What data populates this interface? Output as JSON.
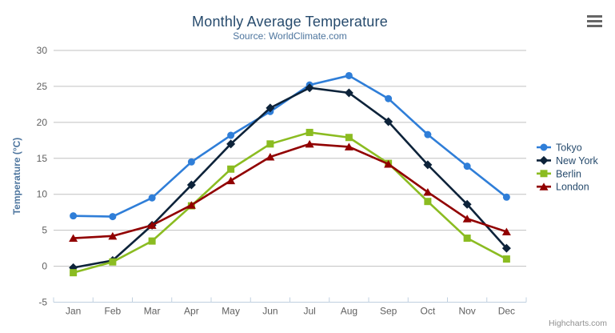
{
  "chart_data": {
    "type": "line",
    "title": "Monthly Average Temperature",
    "subtitle": "Source: WorldClimate.com",
    "xlabel": "",
    "ylabel": "Temperature (°C)",
    "categories": [
      "Jan",
      "Feb",
      "Mar",
      "Apr",
      "May",
      "Jun",
      "Jul",
      "Aug",
      "Sep",
      "Oct",
      "Nov",
      "Dec"
    ],
    "yticks": [
      30,
      25,
      20,
      15,
      10,
      5,
      0,
      -5
    ],
    "ylim": [
      -5,
      30
    ],
    "grid": "horizontal-on",
    "legend_position": "right",
    "series": [
      {
        "name": "Tokyo",
        "color": "#2f7ed8",
        "marker": "circle",
        "values": [
          7.0,
          6.9,
          9.5,
          14.5,
          18.2,
          21.5,
          25.2,
          26.5,
          23.3,
          18.3,
          13.9,
          9.6
        ]
      },
      {
        "name": "New York",
        "color": "#0d233a",
        "marker": "diamond",
        "values": [
          -0.2,
          0.8,
          5.7,
          11.3,
          17.0,
          22.0,
          24.8,
          24.1,
          20.1,
          14.1,
          8.6,
          2.5
        ]
      },
      {
        "name": "Berlin",
        "color": "#8bbc21",
        "marker": "square",
        "values": [
          -0.9,
          0.6,
          3.5,
          8.4,
          13.5,
          17.0,
          18.6,
          17.9,
          14.3,
          9.0,
          3.9,
          1.0
        ]
      },
      {
        "name": "London",
        "color": "#910000",
        "marker": "triangle",
        "values": [
          3.9,
          4.2,
          5.7,
          8.5,
          11.9,
          15.2,
          17.0,
          16.6,
          14.2,
          10.3,
          6.6,
          4.8
        ]
      }
    ]
  },
  "credits": "Highcharts.com",
  "export_menu": {
    "icon": "hamburger-icon"
  },
  "colors": {
    "title": "#274b6d",
    "subtitle": "#4d759e",
    "axis_title": "#4d759e",
    "tick_label": "#606060",
    "grid_line": "#c0c0c0",
    "axis_line": "#c0d0e0",
    "legend_text": "#274b6d",
    "credits_text": "#909090",
    "export_icon": "#666666"
  }
}
